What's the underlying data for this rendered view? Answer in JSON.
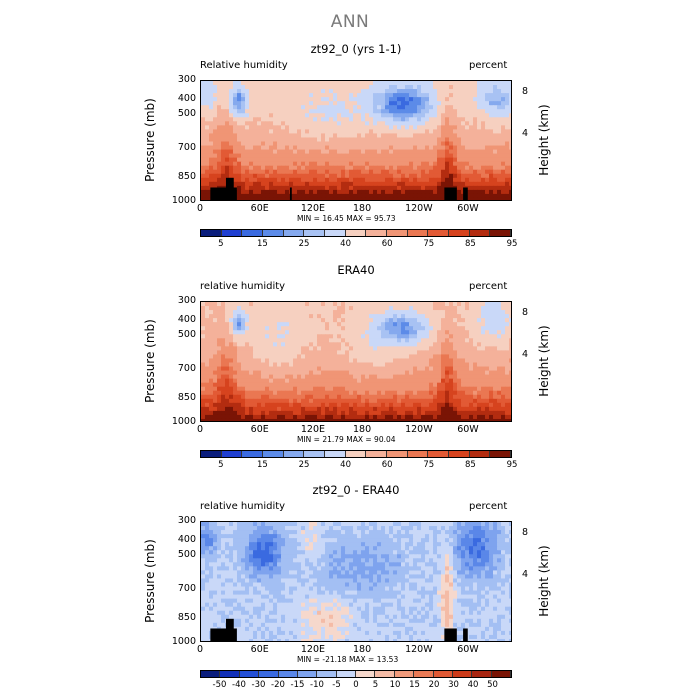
{
  "page_title": "ANN",
  "chart_data": [
    {
      "type": "heatmap",
      "title": "zt92_0 (yrs 1-1)",
      "left_label": "Relative humidity",
      "right_label": "percent",
      "ylabel": "Pressure (mb)",
      "y2label": "Height (km)",
      "x_ticks": [
        "0",
        "60E",
        "120E",
        "180",
        "120W",
        "60W"
      ],
      "y_ticks": [
        "300",
        "400",
        "500",
        "700",
        "850",
        "1000"
      ],
      "y2_ticks": [
        "8",
        "4"
      ],
      "stats": {
        "min_label": "MIN =",
        "min": "16.45",
        "max_label": "MAX =",
        "max": "95.73"
      },
      "colorbar_labels": [
        "5",
        "15",
        "25",
        "40",
        "60",
        "75",
        "85",
        "95"
      ],
      "colors": [
        "#0a1d7c",
        "#1f3fd1",
        "#3a6ae0",
        "#5c8be8",
        "#85a9ee",
        "#a8c2f3",
        "#c9d8f8",
        "#f6d0c0",
        "#f4b19a",
        "#f09575",
        "#ea7752",
        "#e25a35",
        "#d6431e",
        "#b32c10",
        "#7a1405"
      ]
    },
    {
      "type": "heatmap",
      "title": "ERA40",
      "left_label": "relative humidity",
      "right_label": "percent",
      "ylabel": "Pressure (mb)",
      "y2label": "Height (km)",
      "x_ticks": [
        "0",
        "60E",
        "120E",
        "180",
        "120W",
        "60W"
      ],
      "y_ticks": [
        "300",
        "400",
        "500",
        "700",
        "850",
        "1000"
      ],
      "y2_ticks": [
        "8",
        "4"
      ],
      "stats": {
        "min_label": "MIN =",
        "min": "21.79",
        "max_label": "MAX =",
        "max": "90.04"
      },
      "colorbar_labels": [
        "5",
        "15",
        "25",
        "40",
        "60",
        "75",
        "85",
        "95"
      ],
      "colors": [
        "#0a1d7c",
        "#1f3fd1",
        "#3a6ae0",
        "#5c8be8",
        "#85a9ee",
        "#a8c2f3",
        "#c9d8f8",
        "#f6d0c0",
        "#f4b19a",
        "#f09575",
        "#ea7752",
        "#e25a35",
        "#d6431e",
        "#b32c10",
        "#7a1405"
      ]
    },
    {
      "type": "heatmap",
      "title": "zt92_0 - ERA40",
      "left_label": "relative humidity",
      "right_label": "percent",
      "ylabel": "Pressure (mb)",
      "y2label": "Height (km)",
      "x_ticks": [
        "0",
        "60E",
        "120E",
        "180",
        "120W",
        "60W"
      ],
      "y_ticks": [
        "300",
        "400",
        "500",
        "700",
        "850",
        "1000"
      ],
      "y2_ticks": [
        "8",
        "4"
      ],
      "stats": {
        "min_label": "MIN =",
        "min": "-21.18",
        "max_label": "MAX =",
        "max": "13.53"
      },
      "colorbar_labels": [
        "-50",
        "-40",
        "-30",
        "-20",
        "-15",
        "-10",
        "-5",
        "0",
        "5",
        "10",
        "15",
        "20",
        "30",
        "40",
        "50"
      ],
      "colors": [
        "#0a1d7c",
        "#1230b8",
        "#2450d6",
        "#3a6ae0",
        "#5a87e8",
        "#7ea3ee",
        "#a3bff3",
        "#c9d8f8",
        "#f6d8cc",
        "#f4bba6",
        "#f09a7b",
        "#e97a55",
        "#df5934",
        "#cc3b1a",
        "#a82510",
        "#7a1405"
      ]
    }
  ]
}
